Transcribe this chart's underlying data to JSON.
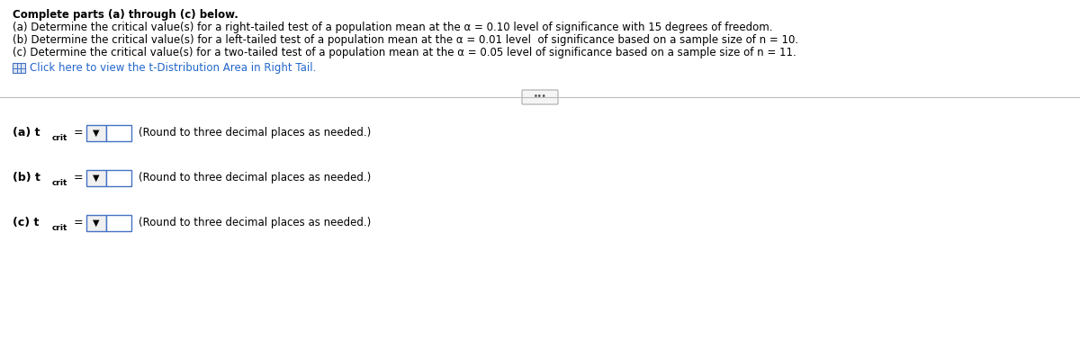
{
  "title_line": "Complete parts (a) through (c) below.",
  "line_a": "(a) Determine the critical value(s) for a right-tailed test of a population mean at the α = 0.10 level of significance with 15 degrees of freedom.",
  "line_b": "(b) Determine the critical value(s) for a left-tailed test of a population mean at the α = 0.01 level  of significance based on a sample size of n = 10.",
  "line_c": "(c) Determine the critical value(s) for a two-tailed test of a population mean at the α = 0.05 level of significance based on a sample size of n = 11.",
  "click_line": "Click here to view the t-Distribution Area in Right Tail.",
  "subscript": "crit",
  "round_text": "(Round to three decimal places as needed.)",
  "bg_color": "#ffffff",
  "text_color": "#000000",
  "link_color": "#2266cc",
  "separator_color": "#bbbbbb",
  "box_border_color": "#4472c4",
  "dropdown_fill": "#e8e8e8",
  "dots_color": "#555555",
  "font_size_body": 8.5,
  "font_size_answer": 9.0,
  "font_size_sub": 6.5
}
